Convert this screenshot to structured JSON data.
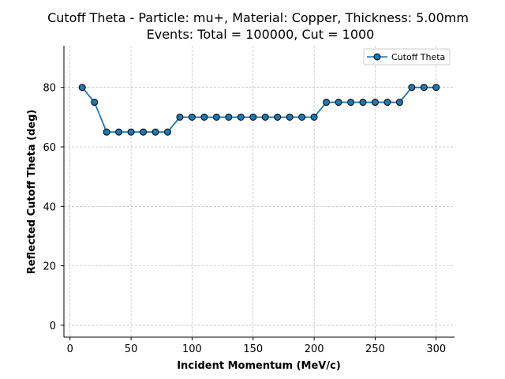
{
  "chart_data": {
    "type": "line",
    "title_line1": "Cutoff Theta - Particle: mu+, Material: Copper, Thickness: 5.00mm",
    "title_line2": "Events: Total = 100000, Cut = 1000",
    "xlabel": "Incident Momentum (MeV/c)",
    "ylabel": "Reflected Cutoff Theta (deg)",
    "xlim": [
      -5,
      315
    ],
    "ylim": [
      -4,
      94
    ],
    "xticks": [
      0,
      50,
      100,
      150,
      200,
      250,
      300
    ],
    "yticks": [
      0,
      20,
      40,
      60,
      80
    ],
    "grid": true,
    "legend_position": "top-right",
    "series": [
      {
        "name": "Cutoff Theta",
        "color": "#1f77b4",
        "marker": "circle",
        "x": [
          10,
          20,
          30,
          40,
          50,
          60,
          70,
          80,
          90,
          100,
          110,
          120,
          130,
          140,
          150,
          160,
          170,
          180,
          190,
          200,
          210,
          220,
          230,
          240,
          250,
          260,
          270,
          280,
          290,
          300
        ],
        "y": [
          80,
          75,
          65,
          65,
          65,
          65,
          65,
          65,
          70,
          70,
          70,
          70,
          70,
          70,
          70,
          70,
          70,
          70,
          70,
          70,
          75,
          75,
          75,
          75,
          75,
          75,
          75,
          80,
          80,
          80
        ]
      }
    ]
  }
}
